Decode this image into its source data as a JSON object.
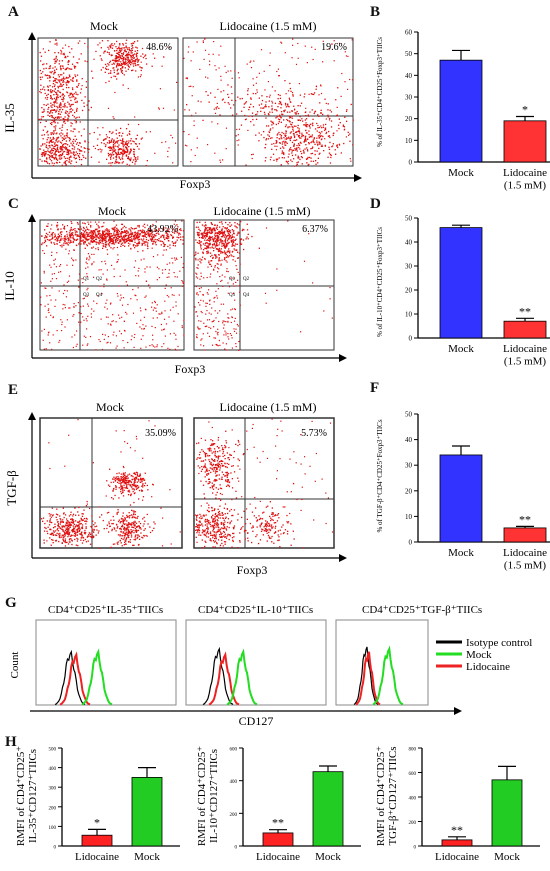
{
  "panels": {
    "A": "A",
    "B": "B",
    "C": "C",
    "D": "D",
    "E": "E",
    "F": "F",
    "G": "G",
    "H": "H"
  },
  "flow": {
    "A": {
      "ylabel": "IL-35",
      "xlabel": "Foxp3",
      "left_title": "Mock",
      "right_title": "Lidocaine (1.5 mM)",
      "left_pct": "48.6%",
      "right_pct": "19.6%"
    },
    "C": {
      "ylabel": "IL-10",
      "xlabel": "Foxp3",
      "left_title": "Mock",
      "right_title": "Lidocaine (1.5 mM)",
      "left_pct": "43.92%",
      "right_pct": "6.37%",
      "quad_labels": [
        "Q1",
        "Q2",
        "Q3",
        "Q4"
      ]
    },
    "E": {
      "ylabel": "TGF-β",
      "xlabel": "Foxp3",
      "left_title": "Mock",
      "right_title": "Lidocaine (1.5 mM)",
      "left_pct": "35.09%",
      "right_pct": "5.73%"
    }
  },
  "histograms": {
    "titles": [
      "CD4⁺CD25⁺IL-35⁺TIICs",
      "CD4⁺CD25⁺IL-10⁺TIICs",
      "CD4⁺CD25⁺TGF-β⁺TIICs"
    ],
    "ylabel": "Count",
    "xlabel": "CD127",
    "legend": [
      {
        "label": "Isotype control",
        "color": "#000000"
      },
      {
        "label": "Mock",
        "color": "#22dd22"
      },
      {
        "label": "Lidocaine",
        "color": "#ee2222"
      }
    ]
  },
  "colors": {
    "blue": "#3333ff",
    "red": "#ff3333",
    "green": "#22cc22"
  },
  "chart_data": [
    {
      "id": "B",
      "type": "bar",
      "categories": [
        "Mock",
        "Lidocaine\n(1.5 mM)"
      ],
      "values": [
        47,
        19
      ],
      "errors": [
        4.5,
        2
      ],
      "ylabel": "% of IL-35⁺CD4⁺CD25⁺Foxp3⁺TIICs",
      "ylim": [
        0,
        60
      ],
      "yticks": [
        0,
        10,
        20,
        30,
        40,
        50,
        60
      ],
      "colors": [
        "#3333ff",
        "#ff3333"
      ],
      "sig": [
        "",
        "*"
      ]
    },
    {
      "id": "D",
      "type": "bar",
      "categories": [
        "Mock",
        "Lidocaine\n(1.5 mM)"
      ],
      "values": [
        46,
        7
      ],
      "errors": [
        1,
        1.2
      ],
      "ylabel": "% of IL-10⁺CD4⁺CD25⁺Foxp3⁺TIICs",
      "ylim": [
        0,
        50
      ],
      "yticks": [
        0,
        10,
        20,
        30,
        40,
        50
      ],
      "colors": [
        "#3333ff",
        "#ff3333"
      ],
      "sig": [
        "",
        "**"
      ]
    },
    {
      "id": "F",
      "type": "bar",
      "categories": [
        "Mock",
        "Lidocaine\n(1.5 mM)"
      ],
      "values": [
        34,
        5.5
      ],
      "errors": [
        3.5,
        0.6
      ],
      "ylabel": "% of TGF-β⁺CD4⁺CD25⁺Foxp3⁺TIICs",
      "ylim": [
        0,
        50
      ],
      "yticks": [
        0,
        10,
        20,
        30,
        40,
        50
      ],
      "colors": [
        "#3333ff",
        "#ff3333"
      ],
      "sig": [
        "",
        "**"
      ]
    },
    {
      "id": "H1",
      "type": "bar",
      "categories": [
        "Lidocaine",
        "Mock"
      ],
      "values": [
        55,
        350
      ],
      "errors": [
        30,
        50
      ],
      "ylabel": "RMFI of CD4⁺CD25⁺\nIL-35⁺CD127⁺TIICs",
      "ylim": [
        0,
        500
      ],
      "yticks": [
        0,
        100,
        200,
        300,
        400,
        500
      ],
      "colors": [
        "#ff2222",
        "#22cc22"
      ],
      "sig": [
        "*",
        ""
      ]
    },
    {
      "id": "H2",
      "type": "bar",
      "categories": [
        "Lidocaine",
        "Mock"
      ],
      "values": [
        80,
        455
      ],
      "errors": [
        20,
        35
      ],
      "ylabel": "RMFI of CD4⁺CD25⁺\nIL-10⁺CD127⁺TIICs",
      "ylim": [
        0,
        600
      ],
      "yticks": [
        0,
        200,
        400,
        600
      ],
      "colors": [
        "#ff2222",
        "#22cc22"
      ],
      "sig": [
        "**",
        ""
      ]
    },
    {
      "id": "H3",
      "type": "bar",
      "categories": [
        "Lidocaine",
        "Mock"
      ],
      "values": [
        50,
        540
      ],
      "errors": [
        25,
        110
      ],
      "ylabel": "RMFI of CD4⁺CD25⁺\nTGF-β⁺CD127⁺TIICs",
      "ylim": [
        0,
        800
      ],
      "yticks": [
        0,
        200,
        400,
        600,
        800
      ],
      "colors": [
        "#ff2222",
        "#22cc22"
      ],
      "sig": [
        "**",
        ""
      ]
    }
  ]
}
